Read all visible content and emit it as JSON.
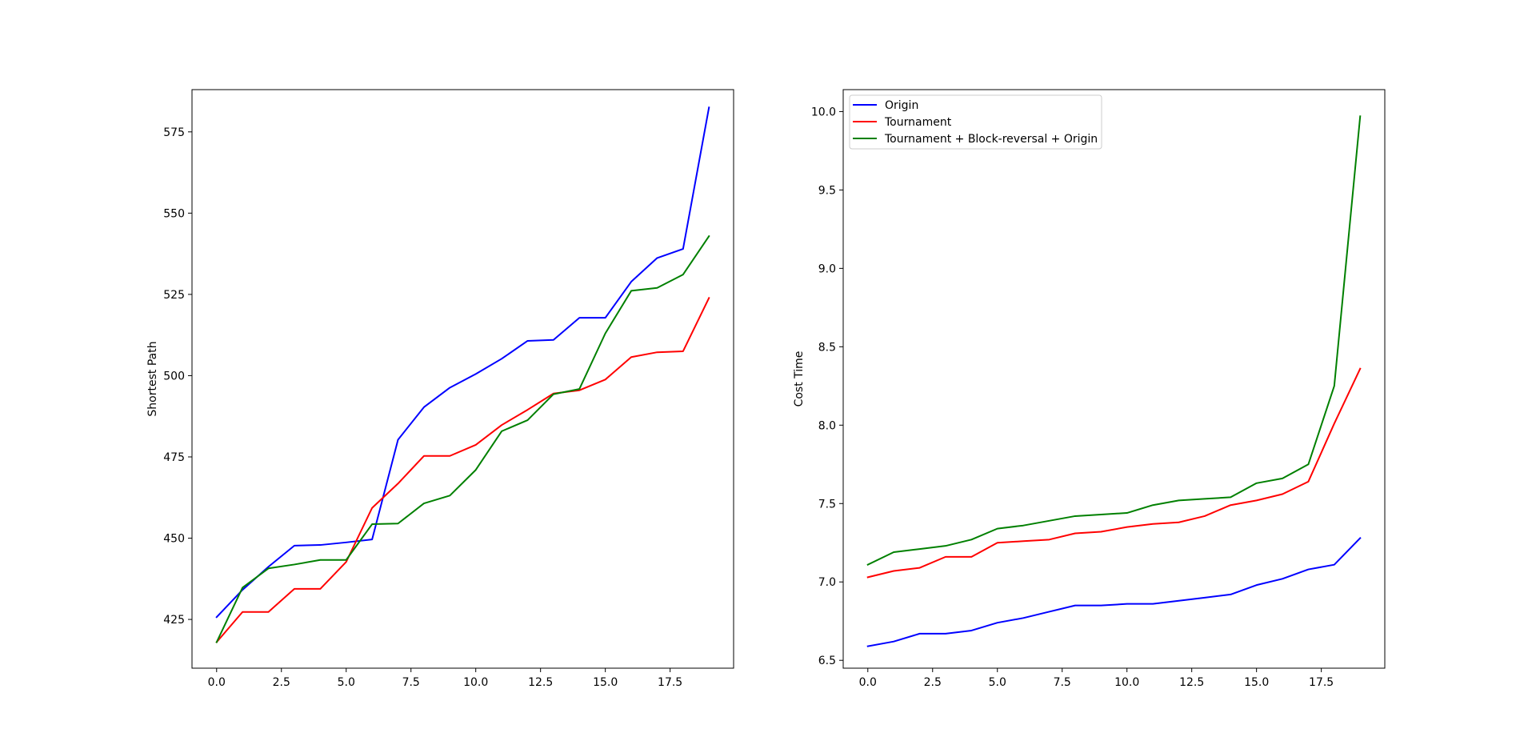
{
  "chart_data": [
    {
      "type": "line",
      "title": "",
      "xlabel": "",
      "ylabel": "Shortest Path",
      "xlim": [
        -0.95,
        19.95
      ],
      "ylim": [
        410,
        588
      ],
      "xticks": [
        0.0,
        2.5,
        5.0,
        7.5,
        10.0,
        12.5,
        15.0,
        17.5
      ],
      "xtick_labels": [
        "0.0",
        "2.5",
        "5.0",
        "7.5",
        "10.0",
        "12.5",
        "15.0",
        "17.5"
      ],
      "yticks": [
        425,
        450,
        475,
        500,
        525,
        550,
        575
      ],
      "ytick_labels": [
        "425",
        "450",
        "475",
        "500",
        "525",
        "550",
        "575"
      ],
      "grid": false,
      "legend": false,
      "x": [
        0,
        1,
        2,
        3,
        4,
        5,
        6,
        7,
        8,
        9,
        10,
        11,
        12,
        13,
        14,
        15,
        16,
        17,
        18,
        19
      ],
      "series": [
        {
          "color": "#0000ff",
          "values": [
            425.7,
            434.1,
            441.2,
            447.7,
            447.9,
            448.7,
            449.6,
            480.3,
            490.3,
            496.3,
            500.5,
            505.2,
            510.7,
            511.0,
            517.8,
            517.8,
            528.9,
            536.2,
            539.0,
            582.5
          ]
        },
        {
          "color": "#ff0000",
          "values": [
            418.0,
            427.3,
            427.3,
            434.4,
            434.4,
            442.7,
            459.3,
            466.8,
            475.3,
            475.3,
            478.7,
            484.8,
            489.5,
            494.5,
            495.5,
            498.8,
            505.7,
            507.2,
            507.5,
            523.9
          ]
        },
        {
          "color": "#008000",
          "values": [
            418.0,
            434.8,
            440.7,
            441.9,
            443.3,
            443.3,
            454.3,
            454.5,
            460.7,
            463.1,
            471.0,
            482.9,
            486.3,
            494.3,
            495.9,
            513.0,
            526.1,
            527.0,
            531.1,
            542.9
          ]
        }
      ]
    },
    {
      "type": "line",
      "title": "",
      "xlabel": "",
      "ylabel": "Cost Time",
      "xlim": [
        -0.95,
        19.95
      ],
      "ylim": [
        6.45,
        10.14
      ],
      "xticks": [
        0.0,
        2.5,
        5.0,
        7.5,
        10.0,
        12.5,
        15.0,
        17.5
      ],
      "xtick_labels": [
        "0.0",
        "2.5",
        "5.0",
        "7.5",
        "10.0",
        "12.5",
        "15.0",
        "17.5"
      ],
      "yticks": [
        6.5,
        7.0,
        7.5,
        8.0,
        8.5,
        9.0,
        9.5,
        10.0
      ],
      "ytick_labels": [
        "6.5",
        "7.0",
        "7.5",
        "8.0",
        "8.5",
        "9.0",
        "9.5",
        "10.0"
      ],
      "grid": false,
      "legend": true,
      "legend_position": "top-left",
      "x": [
        0,
        1,
        2,
        3,
        4,
        5,
        6,
        7,
        8,
        9,
        10,
        11,
        12,
        13,
        14,
        15,
        16,
        17,
        18,
        19
      ],
      "series": [
        {
          "name": "Origin",
          "color": "#0000ff",
          "values": [
            6.59,
            6.62,
            6.67,
            6.67,
            6.69,
            6.74,
            6.77,
            6.81,
            6.85,
            6.85,
            6.86,
            6.86,
            6.88,
            6.9,
            6.92,
            6.98,
            7.02,
            7.08,
            7.11,
            7.28
          ]
        },
        {
          "name": "Tournament",
          "color": "#ff0000",
          "values": [
            7.03,
            7.07,
            7.09,
            7.16,
            7.16,
            7.25,
            7.26,
            7.27,
            7.31,
            7.32,
            7.35,
            7.37,
            7.38,
            7.42,
            7.49,
            7.52,
            7.56,
            7.64,
            8.01,
            8.36
          ]
        },
        {
          "name": "Tournament + Block-reversal + Origin",
          "color": "#008000",
          "values": [
            7.11,
            7.19,
            7.21,
            7.23,
            7.27,
            7.34,
            7.36,
            7.39,
            7.42,
            7.43,
            7.44,
            7.49,
            7.52,
            7.53,
            7.54,
            7.63,
            7.66,
            7.75,
            8.25,
            9.97
          ]
        }
      ]
    }
  ]
}
